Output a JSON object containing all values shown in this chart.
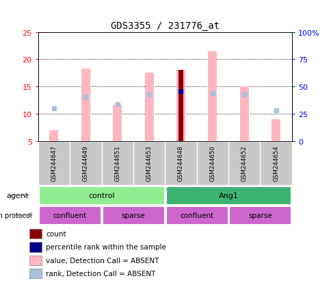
{
  "title": "GDS3355 / 231776_at",
  "samples": [
    "GSM244647",
    "GSM244649",
    "GSM244651",
    "GSM244653",
    "GSM244648",
    "GSM244650",
    "GSM244652",
    "GSM244654"
  ],
  "value_bars": [
    7.0,
    18.3,
    11.7,
    17.5,
    18.1,
    21.5,
    15.0,
    9.0
  ],
  "value_bar_bottoms": [
    5.0,
    5.0,
    5.0,
    5.0,
    5.0,
    5.0,
    5.0,
    5.0
  ],
  "rank_dots": [
    11.0,
    13.2,
    11.8,
    13.5,
    14.1,
    13.8,
    13.5,
    10.7
  ],
  "count_bar": [
    null,
    null,
    null,
    null,
    18.1,
    null,
    null,
    null
  ],
  "count_bar_bottom": 5.0,
  "percentile_dot": [
    null,
    null,
    null,
    null,
    14.2,
    null,
    null,
    null
  ],
  "ylim": [
    5,
    25
  ],
  "yticks_left": [
    5,
    10,
    15,
    20,
    25
  ],
  "yticks_right_labels": [
    "0",
    "25",
    "50",
    "75",
    "100%"
  ],
  "agent_groups": [
    {
      "label": "control",
      "start": 0,
      "end": 4,
      "color": "#90EE90"
    },
    {
      "label": "Ang1",
      "start": 4,
      "end": 8,
      "color": "#3CB371"
    }
  ],
  "growth_groups": [
    {
      "label": "confluent",
      "start": 0,
      "end": 2,
      "color": "#CC66CC"
    },
    {
      "label": "sparse",
      "start": 2,
      "end": 4,
      "color": "#CC66CC"
    },
    {
      "label": "confluent",
      "start": 4,
      "end": 6,
      "color": "#CC66CC"
    },
    {
      "label": "sparse",
      "start": 6,
      "end": 8,
      "color": "#CC66CC"
    }
  ],
  "value_bar_color": "#FFB6C1",
  "rank_dot_color": "#AABFDD",
  "count_bar_color": "#8B0000",
  "percentile_dot_color": "#00008B",
  "left_axis_color": "#FF0000",
  "right_axis_color": "#0000FF",
  "sample_band_color": "#C8C8C8",
  "legend_items": [
    {
      "label": "count",
      "color": "#8B0000"
    },
    {
      "label": "percentile rank within the sample",
      "color": "#00008B"
    },
    {
      "label": "value, Detection Call = ABSENT",
      "color": "#FFB6C1"
    },
    {
      "label": "rank, Detection Call = ABSENT",
      "color": "#AABFDD"
    }
  ]
}
